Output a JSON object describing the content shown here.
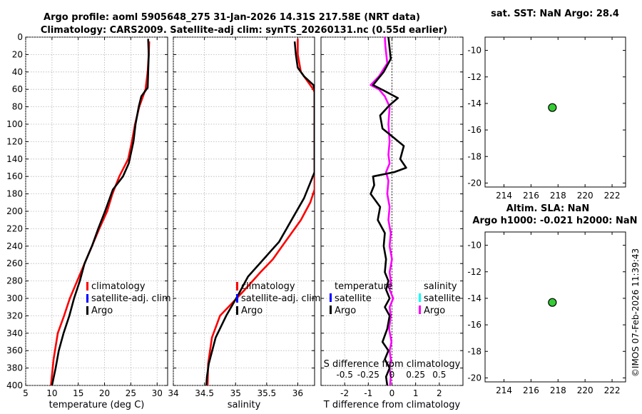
{
  "titles": {
    "line1": "Argo profile: aoml 5905648_275 31-Jan-2026 14.31S 217.58E (NRT data)",
    "line2": "Climatology: CARS2009. Satellite-adj clim: synTS_20260131.nc (0.55d earlier)",
    "sst": "sat. SST: NaN Argo: 28.4",
    "sla": "Altim. SLA: NaN",
    "heights": "Argo h1000: -0.021 h2000: NaN"
  },
  "timestamp": "©IMOS 07-Feb-2026 11:39:43",
  "colors": {
    "climatology": "#ff0000",
    "satellite": "#0000ff",
    "argo": "#000000",
    "sal_satellite": "#00ffff",
    "sal_argo": "#ff00ff",
    "marker": "#33cc33"
  },
  "legends": {
    "temp": [
      "climatology",
      "satellite-adj. clim",
      "Argo"
    ],
    "sal": [
      "climatology",
      "satellite-adj. clim",
      "Argo"
    ],
    "diff_t_title": "temperature",
    "diff_s_title": "salinity",
    "diff_t_items": [
      "satellite",
      "Argo"
    ],
    "diff_s_items": [
      "satellite",
      "Argo"
    ]
  },
  "chart_data": [
    {
      "type": "line",
      "name": "temperature",
      "xlabel": "temperature (deg C)",
      "xlim": [
        5,
        32
      ],
      "ylim": [
        0,
        400
      ],
      "xticks": [
        5,
        10,
        15,
        20,
        25,
        30
      ],
      "xtick_labels": [
        "5",
        "10",
        "15",
        "20",
        "25",
        "30"
      ],
      "yticks": [
        0,
        20,
        40,
        60,
        80,
        100,
        120,
        140,
        160,
        180,
        200,
        220,
        240,
        260,
        280,
        300,
        320,
        340,
        360,
        380,
        400
      ],
      "ytick_labels": [
        "0",
        "20",
        "40",
        "60",
        "80",
        "100",
        "120",
        "140",
        "160",
        "180",
        "200",
        "220",
        "240",
        "260",
        "280",
        "300",
        "320",
        "340",
        "360",
        "380",
        "400"
      ],
      "series": [
        {
          "name": "climatology",
          "x": [
            28.5,
            28.4,
            28.2,
            27.8,
            26.6,
            25.8,
            25.2,
            24.5,
            22.8,
            21.5,
            20.5,
            19.0,
            17.6,
            16.2,
            14.8,
            13.4,
            12.3,
            11.1,
            10.3,
            9.8
          ],
          "y": [
            5,
            20,
            40,
            60,
            80,
            100,
            120,
            140,
            160,
            180,
            200,
            220,
            240,
            260,
            280,
            300,
            320,
            340,
            370,
            400
          ]
        },
        {
          "name": "Argo",
          "x": [
            28.3,
            28.4,
            28.3,
            28.2,
            27.0,
            26.5,
            25.9,
            25.5,
            24.6,
            23.5,
            21.6,
            20.1,
            18.8,
            17.6,
            16.2,
            15.3,
            14.2,
            13.3,
            12.2,
            11.3,
            10.7,
            10.0
          ],
          "y": [
            2,
            20,
            40,
            58,
            68,
            80,
            100,
            120,
            145,
            160,
            175,
            200,
            220,
            240,
            260,
            280,
            300,
            320,
            340,
            360,
            380,
            400
          ]
        }
      ]
    },
    {
      "type": "line",
      "name": "salinity",
      "xlabel": "salinity",
      "xlim": [
        34,
        36.27
      ],
      "ylim": [
        0,
        400
      ],
      "xticks": [
        34,
        34.5,
        35,
        35.5,
        36
      ],
      "xtick_labels": [
        "34",
        "34.5",
        "35",
        "35.5",
        "36"
      ],
      "series": [
        {
          "name": "climatology",
          "x": [
            36.0,
            36.0,
            36.05,
            36.15,
            36.25,
            36.27,
            36.27,
            36.2,
            36.05,
            35.9,
            35.75,
            35.6,
            35.4,
            35.15,
            34.95,
            34.75,
            34.62,
            34.56,
            34.55
          ],
          "y": [
            2,
            20,
            40,
            50,
            60,
            63,
            175,
            190,
            210,
            225,
            240,
            255,
            270,
            290,
            305,
            320,
            345,
            375,
            400
          ]
        },
        {
          "name": "Argo",
          "x": [
            35.95,
            35.97,
            36.0,
            36.1,
            36.25,
            36.27,
            36.27,
            36.1,
            35.9,
            35.7,
            35.45,
            35.2,
            35.05,
            34.85,
            34.68,
            34.57,
            34.54,
            34.53
          ],
          "y": [
            5,
            20,
            35,
            45,
            55,
            60,
            155,
            185,
            210,
            235,
            255,
            275,
            295,
            320,
            345,
            375,
            390,
            400
          ]
        }
      ]
    },
    {
      "type": "line",
      "name": "difference from climatology",
      "xlabel": "T difference from climatology",
      "x2label": "S difference from climatology",
      "xlim": [
        -3,
        3
      ],
      "ylim": [
        0,
        400
      ],
      "xticks": [
        -2,
        -1,
        0,
        1,
        2
      ],
      "xtick_labels": [
        "-2",
        "-1",
        "0",
        "1",
        "2"
      ],
      "x2ticks": [
        -2,
        -1,
        0,
        1,
        2
      ],
      "x2tick_labels": [
        "-0.5",
        "-0.25",
        "0",
        "0.25",
        "0.5"
      ],
      "series": [
        {
          "name": "temperature Argo",
          "x": [
            -0.15,
            -0.05,
            -0.35,
            -0.8,
            -0.3,
            0.25,
            -0.1,
            -0.5,
            -0.4,
            0.05,
            0.5,
            0.35,
            0.6,
            0.1,
            -0.8,
            -0.75,
            -0.9,
            -0.5,
            -0.6,
            -0.3,
            -0.35,
            -0.25,
            -0.3,
            -0.15,
            -0.25,
            -0.1,
            -0.3,
            -0.1,
            -0.2,
            -0.4,
            -0.15,
            -0.3,
            -0.1,
            -0.25,
            -0.2
          ],
          "y": [
            0,
            25,
            40,
            55,
            62,
            70,
            78,
            90,
            105,
            115,
            125,
            140,
            150,
            155,
            160,
            170,
            180,
            195,
            210,
            225,
            240,
            255,
            270,
            280,
            290,
            300,
            310,
            320,
            335,
            350,
            360,
            370,
            380,
            390,
            400
          ]
        },
        {
          "name": "salinity Argo",
          "x": [
            -0.3,
            -0.28,
            -0.2,
            -0.55,
            -0.9,
            -0.55,
            -0.3,
            -0.1,
            -0.15,
            -0.1,
            -0.15,
            -0.1,
            -0.25,
            -0.15,
            -0.2,
            -0.1,
            -0.15,
            -0.05,
            -0.1,
            0.0,
            -0.1,
            -0.05,
            -0.1,
            0.05,
            -0.1,
            -0.05,
            -0.12,
            -0.02,
            -0.1,
            -0.05,
            -0.1,
            -0.05,
            -0.08
          ],
          "y": [
            0,
            10,
            30,
            45,
            55,
            60,
            68,
            80,
            100,
            120,
            135,
            145,
            155,
            165,
            180,
            195,
            210,
            225,
            240,
            255,
            270,
            280,
            290,
            300,
            310,
            320,
            335,
            350,
            360,
            370,
            380,
            390,
            400
          ]
        }
      ]
    },
    {
      "type": "scatter",
      "name": "sat. SST map",
      "xlim": [
        212.6,
        223.0
      ],
      "ylim": [
        -20.3,
        -9.0
      ],
      "xticks": [
        214,
        216,
        218,
        220,
        222
      ],
      "xtick_labels": [
        "214",
        "216",
        "218",
        "220",
        "222"
      ],
      "yticks": [
        -10,
        -12,
        -14,
        -16,
        -18,
        -20
      ],
      "ytick_labels": [
        "-10",
        "-12",
        "-14",
        "-16",
        "-18",
        "-20"
      ],
      "points": [
        {
          "x": 217.58,
          "y": -14.31
        }
      ]
    },
    {
      "type": "scatter",
      "name": "altimetry SLA map",
      "xlim": [
        212.6,
        223.0
      ],
      "ylim": [
        -20.3,
        -9.0
      ],
      "xticks": [
        214,
        216,
        218,
        220,
        222
      ],
      "xtick_labels": [
        "214",
        "216",
        "218",
        "220",
        "222"
      ],
      "yticks": [
        -10,
        -12,
        -14,
        -16,
        -18,
        -20
      ],
      "ytick_labels": [
        "-10",
        "-12",
        "-14",
        "-16",
        "-18",
        "-20"
      ],
      "points": [
        {
          "x": 217.58,
          "y": -14.31
        }
      ]
    }
  ]
}
